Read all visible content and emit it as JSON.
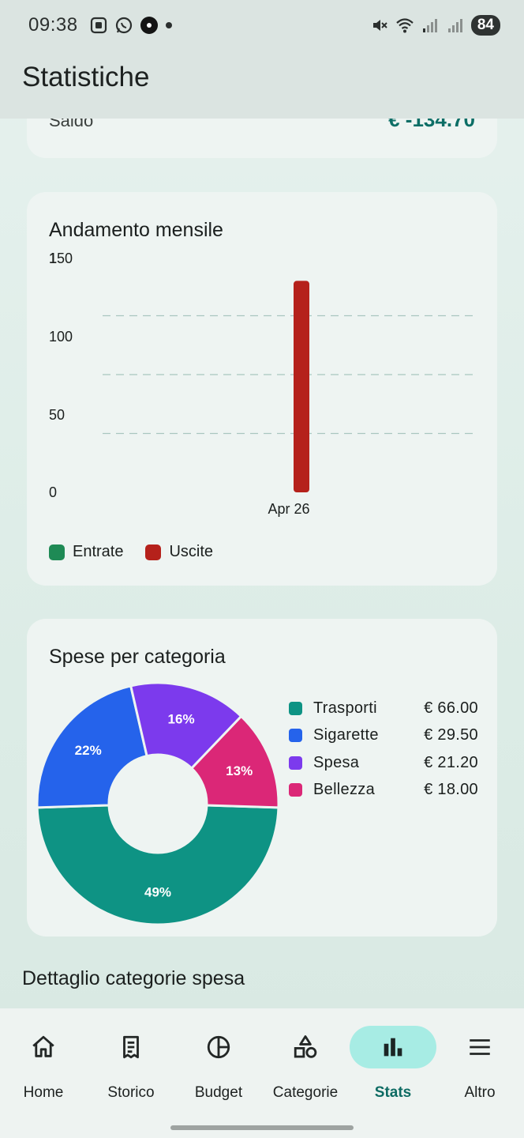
{
  "status_bar": {
    "time": "09:38",
    "battery": "84",
    "left_icons": [
      "screenshot-icon",
      "whatsapp-icon",
      "app-icon",
      "dot-icon"
    ],
    "right_icons": [
      "mute-icon",
      "wifi-icon",
      "signal-icon",
      "signal-icon"
    ]
  },
  "app_bar": {
    "title": "Statistiche"
  },
  "saldo": {
    "label": "Saldo",
    "value": "€ -134.70"
  },
  "monthly": {
    "title": "Andamento mensile",
    "legend": [
      {
        "label": "Entrate",
        "color": "#1e8a55"
      },
      {
        "label": "Uscite",
        "color": "#b5211b"
      }
    ]
  },
  "categories": {
    "title": "Spese per categoria",
    "items": [
      {
        "name": "Trasporti",
        "amount": "€ 66.00",
        "color": "#0e9384"
      },
      {
        "name": "Sigarette",
        "amount": "€ 29.50",
        "color": "#2563eb"
      },
      {
        "name": "Spesa",
        "amount": "€ 21.20",
        "color": "#7c3aed"
      },
      {
        "name": "Bellezza",
        "amount": "€ 18.00",
        "color": "#db2777"
      }
    ]
  },
  "detail_section": {
    "title": "Dettaglio categorie spesa"
  },
  "nav": {
    "items": [
      {
        "label": "Home",
        "icon": "home-icon"
      },
      {
        "label": "Storico",
        "icon": "receipt-icon"
      },
      {
        "label": "Budget",
        "icon": "pie-icon"
      },
      {
        "label": "Categorie",
        "icon": "shapes-icon"
      },
      {
        "label": "Stats",
        "icon": "bar-chart-icon",
        "active": true
      },
      {
        "label": "Altro",
        "icon": "menu-icon"
      }
    ]
  },
  "chart_data": [
    {
      "type": "bar",
      "title": "Andamento mensile",
      "categories": [
        "Apr 26"
      ],
      "series": [
        {
          "name": "Entrate",
          "values": [
            0
          ]
        },
        {
          "name": "Uscite",
          "values": [
            134.7
          ]
        }
      ],
      "y_tick_labels": [
        "0",
        "50",
        "100",
        "150"
      ],
      "y_top_label_overlap": "1",
      "ylim": [
        0,
        150
      ],
      "grid": "dashed horizontal",
      "legend": "bottom-left"
    },
    {
      "type": "pie",
      "title": "Spese per categoria",
      "donut": true,
      "labels": [
        "Trasporti",
        "Sigarette",
        "Spesa",
        "Bellezza"
      ],
      "values": [
        66.0,
        29.5,
        21.2,
        18.0
      ],
      "percent_labels": [
        "49%",
        "22%",
        "16%",
        "13%"
      ],
      "legend": "right"
    }
  ]
}
